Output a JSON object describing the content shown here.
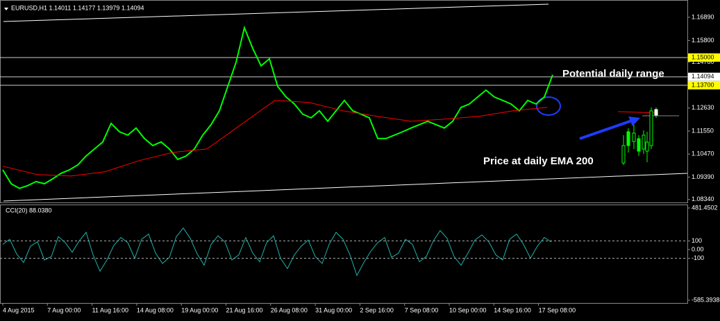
{
  "chart_data": [
    {
      "type": "line",
      "title": "EURUSD,H1  1.14011 1.14177 1.13979 1.14094",
      "series": [
        {
          "color": "#00ff00",
          "values": [
            1.0973,
            1.0908,
            1.0886,
            1.0899,
            1.0918,
            1.0908,
            1.0931,
            1.0957,
            1.0973,
            1.0996,
            1.1038,
            1.1071,
            1.1104,
            1.1191,
            1.1152,
            1.1136,
            1.1169,
            1.112,
            1.1087,
            1.1104,
            1.1071,
            1.1022,
            1.1038,
            1.1071,
            1.1136,
            1.1185,
            1.125,
            1.1364,
            1.1478,
            1.164,
            1.1543,
            1.1461,
            1.1494,
            1.1364,
            1.1315,
            1.1282,
            1.1234,
            1.1217,
            1.125,
            1.1201,
            1.125,
            1.1299,
            1.125,
            1.1234,
            1.1217,
            1.112,
            1.112,
            1.1136,
            1.1152,
            1.1169,
            1.1185,
            1.1201,
            1.1185,
            1.1169,
            1.1201,
            1.1266,
            1.1282,
            1.1315,
            1.1347,
            1.1315,
            1.1299,
            1.1282,
            1.125,
            1.1299,
            1.1282,
            1.1315,
            1.1419
          ]
        },
        {
          "color": "#ff0000",
          "values": [
            1.099,
            1.0951,
            1.0944,
            1.0964,
            1.1016,
            1.1055,
            1.1071,
            1.1185,
            1.1299,
            1.1289,
            1.125,
            1.1224,
            1.1201,
            1.1211,
            1.1224,
            1.125,
            1.1266
          ]
        }
      ],
      "ylim": [
        1.082,
        1.177
      ],
      "yticks": [
        {
          "value": 1.1689,
          "label": "1.16890"
        },
        {
          "value": 1.158,
          "label": "1.15800"
        },
        {
          "value": 1.1478,
          "label": "1.14780"
        },
        {
          "value": 1.1263,
          "label": "1.12630"
        },
        {
          "value": 1.1155,
          "label": "1.11550"
        },
        {
          "value": 1.1047,
          "label": "1.10470"
        },
        {
          "value": 1.0939,
          "label": "1.09390"
        },
        {
          "value": 1.0834,
          "label": "1.08340"
        }
      ],
      "levels": [
        {
          "value": 1.15,
          "label": "1.15000",
          "color": "#ffff00"
        },
        {
          "value": 1.14094,
          "label": "1.14094",
          "color": "#ffffff"
        },
        {
          "value": 1.137,
          "label": "1.13700",
          "color": "#ffff00"
        }
      ],
      "annotations": [
        "Potential daily range",
        "Price at daily EMA 200"
      ],
      "x_labels": [
        "4 Aug 2015",
        "7 Aug 00:00",
        "11 Aug 16:00",
        "14 Aug 08:00",
        "19 Aug 00:00",
        "21 Aug 16:00",
        "26 Aug 08:00",
        "31 Aug 00:00",
        "2 Sep 16:00",
        "7 Sep 08:00",
        "10 Sep 00:00",
        "14 Sep 16:00",
        "17 Sep 08:00"
      ]
    },
    {
      "type": "line",
      "title": "CCI(20) 88.0380",
      "series": [
        {
          "color": "#20b2aa",
          "values": [
            60,
            120,
            -50,
            -150,
            40,
            90,
            -120,
            -80,
            150,
            80,
            -30,
            100,
            200,
            -60,
            -250,
            -120,
            50,
            140,
            80,
            -100,
            120,
            180,
            -40,
            -160,
            -90,
            150,
            250,
            130,
            -50,
            -180,
            60,
            160,
            90,
            -120,
            -60,
            140,
            -40,
            -140,
            80,
            160,
            -100,
            -220,
            -60,
            40,
            110,
            -80,
            -160,
            60,
            200,
            120,
            -60,
            -300,
            -150,
            -20,
            80,
            140,
            -90,
            -40,
            120,
            60,
            -140,
            -80,
            100,
            220,
            130,
            -80,
            -180,
            -40,
            110,
            170,
            90,
            -60,
            -120,
            120,
            180,
            60,
            -100,
            40,
            140,
            88.038
          ]
        }
      ],
      "ylim": [
        -585.3938,
        481.4502
      ],
      "yticks": [
        481.4502,
        100,
        {
          "value": 0,
          "label": "0.00"
        },
        -100,
        -585.3938
      ]
    }
  ]
}
